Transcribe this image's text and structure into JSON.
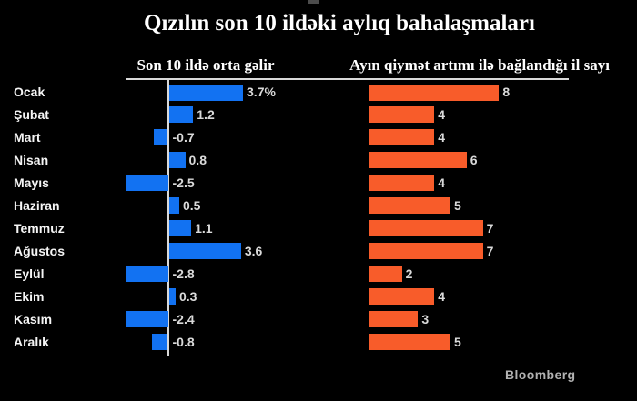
{
  "title": "Qızılın son 10 ildəki aylıq bahalaşmaları",
  "branding": "Bloomberg",
  "colors": {
    "background": "#000000",
    "blue_bar": "#1272f2",
    "orange_bar": "#f85c2a",
    "axis_line": "#d9d9d9",
    "header_divider": "#d9d9d9",
    "title_text": "#ffffff",
    "month_text": "#f5f5f5",
    "value_text": "#dadada",
    "brand_text": "#b2b2b2"
  },
  "chart_data": {
    "type": "bar",
    "orientation": "horizontal",
    "title": "Qızılın son 10 ildəki aylıq bahalaşmaları",
    "categories": [
      "Ocak",
      "Şubat",
      "Mart",
      "Nisan",
      "Mayıs",
      "Haziran",
      "Temmuz",
      "Ağustos",
      "Eylül",
      "Ekim",
      "Kasım",
      "Aralık"
    ],
    "series": [
      {
        "name": "Son 10 ildə orta gəlir",
        "unit": "%",
        "color": "#1272f2",
        "values": [
          3.7,
          1.2,
          -0.7,
          0.8,
          -2.5,
          0.5,
          1.1,
          3.6,
          -2.8,
          0.3,
          -2.4,
          -0.8
        ],
        "value_labels": [
          "3.7%",
          "1.2",
          "-0.7",
          "0.8",
          "-2.5",
          "0.5",
          "1.1",
          "3.6",
          "-2.8",
          "0.3",
          "-2.4",
          "-0.8"
        ],
        "xlim": [
          -2.1,
          3.7
        ]
      },
      {
        "name": "Ayın qiymət artımı ilə bağlandığı il sayı",
        "unit": "il",
        "color": "#f85c2a",
        "values": [
          8,
          4,
          4,
          6,
          4,
          5,
          7,
          7,
          2,
          4,
          3,
          5
        ],
        "value_labels": [
          "8",
          "4",
          "4",
          "6",
          "4",
          "5",
          "7",
          "7",
          "2",
          "4",
          "3",
          "5"
        ],
        "xlim": [
          0,
          8
        ]
      }
    ],
    "grid": false,
    "legend_position": "top",
    "zero_axis_line": "left-chart-only"
  }
}
